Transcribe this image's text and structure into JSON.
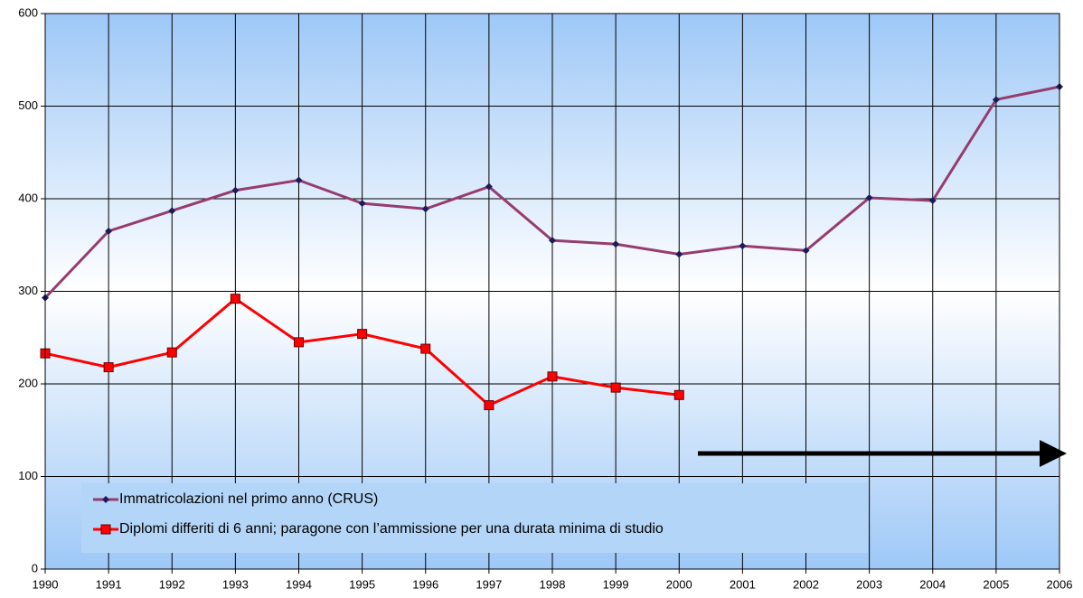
{
  "chart_data": {
    "type": "line",
    "x": [
      1990,
      1991,
      1992,
      1993,
      1994,
      1995,
      1996,
      1997,
      1998,
      1999,
      2000,
      2001,
      2002,
      2003,
      2004,
      2005,
      2006
    ],
    "xlim": [
      1990,
      2006
    ],
    "xticks": [
      1990,
      1991,
      1992,
      1993,
      1994,
      1995,
      1996,
      1997,
      1998,
      1999,
      2000,
      2001,
      2002,
      2003,
      2004,
      2005,
      2006
    ],
    "ylim": [
      0,
      600
    ],
    "yticks": [
      0,
      100,
      200,
      300,
      400,
      500,
      600
    ],
    "grid": true,
    "series": [
      {
        "name": "Immatricolazioni nel primo anno (CRUS)",
        "color": "#963c6e",
        "marker": "diamond",
        "marker_color": "#1c1c5a",
        "values": [
          293,
          365,
          387,
          409,
          420,
          395,
          389,
          413,
          355,
          351,
          340,
          349,
          344,
          401,
          398,
          507,
          521
        ]
      },
      {
        "name": "Diplomi differiti di 6 anni; paragone con l’ammissione per una durata minima di studio",
        "color": "#ff0000",
        "marker": "square",
        "marker_color": "#ff0000",
        "values": [
          233,
          218,
          234,
          292,
          245,
          254,
          238,
          177,
          208,
          196,
          188,
          null,
          null,
          null,
          null,
          null,
          null
        ]
      }
    ]
  }
}
